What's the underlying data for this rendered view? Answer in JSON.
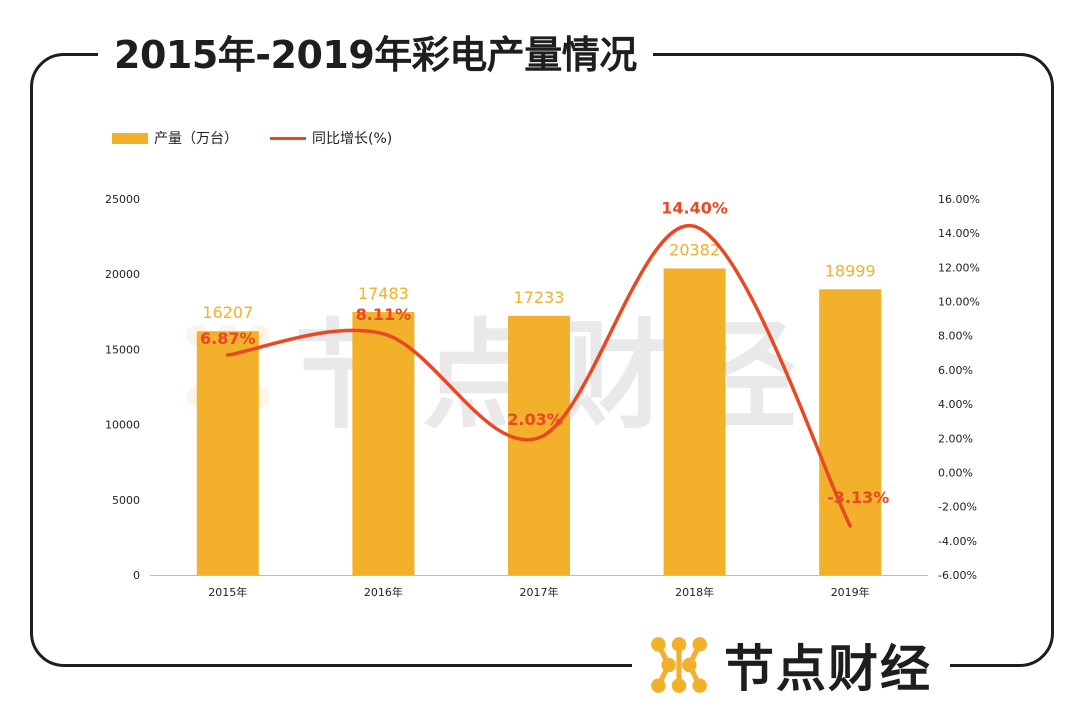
{
  "title": "2015年-2019年彩电产量情况",
  "brand": {
    "name": "节点财经",
    "watermark": "节点财经"
  },
  "colors": {
    "bar": "#f2b02b",
    "line": "#e94825",
    "frame": "#1e1e1e"
  },
  "legend": {
    "bar_label": "产量（万台）",
    "line_label": "同比增长(%)"
  },
  "chart_data": {
    "type": "bar",
    "categories": [
      "2015年",
      "2016年",
      "2017年",
      "2018年",
      "2019年"
    ],
    "series": [
      {
        "name": "产量（万台）",
        "type": "bar",
        "axis": "left",
        "values": [
          16207,
          17483,
          17233,
          20382,
          18999
        ],
        "labels": [
          "16207",
          "17483",
          "17233",
          "20382",
          "18999"
        ]
      },
      {
        "name": "同比增长(%)",
        "type": "line",
        "axis": "right",
        "smooth": true,
        "values": [
          6.87,
          8.11,
          2.03,
          14.4,
          -3.13
        ],
        "labels": [
          "6.87%",
          "8.11%",
          "2.03%",
          "14.40%",
          "-3.13%"
        ]
      }
    ],
    "y_left": {
      "range": [
        0,
        25000
      ],
      "ticks": [
        "0",
        "5000",
        "10000",
        "15000",
        "20000",
        "25000"
      ]
    },
    "y_right": {
      "range": [
        -6,
        16
      ],
      "ticks": [
        "-6.00%",
        "-4.00%",
        "-2.00%",
        "0.00%",
        "2.00%",
        "4.00%",
        "6.00%",
        "8.00%",
        "10.00%",
        "12.00%",
        "14.00%",
        "16.00%"
      ]
    },
    "grid": false,
    "legend_position": "top-left"
  }
}
